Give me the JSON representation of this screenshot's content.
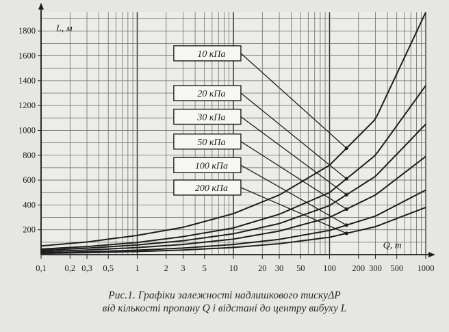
{
  "chart_data": {
    "type": "line",
    "xscale": "log",
    "xlabel": "Q, т",
    "ylabel": "L, м",
    "xlim": [
      0.1,
      1000
    ],
    "ylim": [
      0,
      1950
    ],
    "x_ticks": [
      0.1,
      0.2,
      0.3,
      0.5,
      1,
      2,
      3,
      5,
      10,
      20,
      30,
      50,
      100,
      200,
      300,
      500,
      1000
    ],
    "x_tick_labels": [
      "0,1",
      "0,2",
      "0,3",
      "0,5",
      "1",
      "2",
      "3",
      "5",
      "10",
      "20",
      "30",
      "50",
      "100",
      "200",
      "300",
      "500",
      "1000"
    ],
    "y_ticks": [
      200,
      400,
      600,
      800,
      1000,
      1200,
      1400,
      1600,
      1800
    ],
    "y_tick_labels": [
      "200",
      "400",
      "600",
      "800",
      "1000",
      "1200",
      "1400",
      "1600",
      "1800"
    ],
    "grid": true,
    "series": [
      {
        "name": "10 кПа",
        "label_y": 1620,
        "pointer_x": 150,
        "x": [
          0.1,
          0.3,
          1,
          3,
          10,
          30,
          100,
          300,
          1000
        ],
        "values": [
          70,
          102,
          155,
          220,
          330,
          480,
          720,
          1090,
          1950
        ]
      },
      {
        "name": "20 кПа",
        "label_y": 1300,
        "pointer_x": 150,
        "x": [
          0.1,
          0.3,
          1,
          3,
          10,
          30,
          100,
          300,
          1000
        ],
        "values": [
          45,
          65,
          98,
          145,
          215,
          325,
          500,
          800,
          1360
        ]
      },
      {
        "name": "30 кПа",
        "label_y": 1110,
        "pointer_x": 150,
        "x": [
          0.1,
          0.3,
          1,
          3,
          10,
          30,
          100,
          300,
          1000
        ],
        "values": [
          35,
          52,
          78,
          112,
          168,
          250,
          395,
          630,
          1050
        ]
      },
      {
        "name": "50 кПа",
        "label_y": 910,
        "pointer_x": 150,
        "x": [
          0.1,
          0.3,
          1,
          3,
          10,
          30,
          100,
          300,
          1000
        ],
        "values": [
          25,
          37,
          57,
          82,
          125,
          190,
          300,
          480,
          790
        ]
      },
      {
        "name": "100 кПа",
        "label_y": 720,
        "pointer_x": 150,
        "x": [
          0.1,
          0.3,
          1,
          3,
          10,
          30,
          100,
          300,
          1000
        ],
        "values": [
          15,
          23,
          36,
          53,
          82,
          123,
          195,
          310,
          520
        ]
      },
      {
        "name": "200 кПа",
        "label_y": 540,
        "pointer_x": 150,
        "x": [
          0.1,
          0.3,
          1,
          3,
          10,
          30,
          100,
          300,
          1000
        ],
        "values": [
          10,
          16,
          25,
          37,
          58,
          88,
          140,
          225,
          380
        ]
      }
    ]
  },
  "caption": {
    "line1": "Рис.1. Графіки залежності надлишкового тискуΔP",
    "line2": "від кількості пропану Q і відстані до центру вибуху L"
  }
}
